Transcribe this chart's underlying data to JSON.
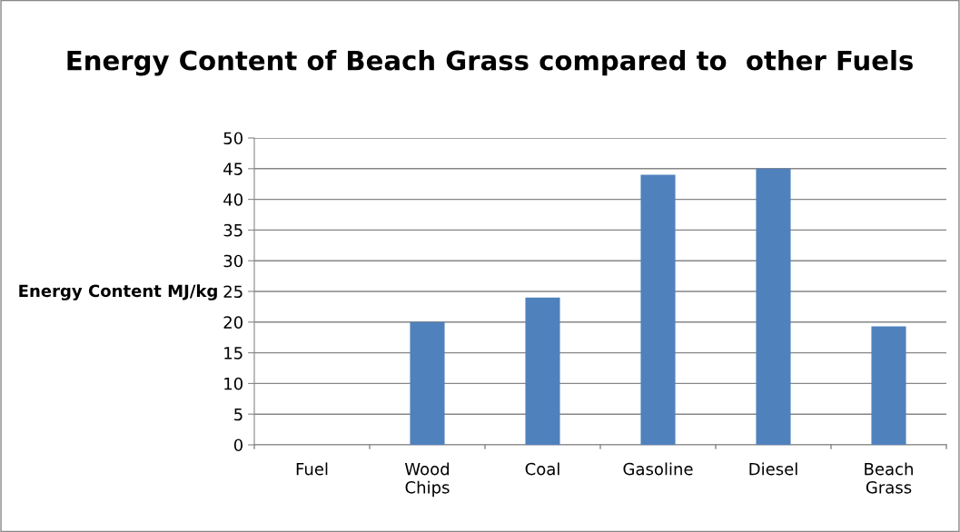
{
  "chart_data": {
    "type": "bar",
    "title": "Energy Content of Beach Grass compared to  other Fuels",
    "ylabel": "Energy Content MJ/kg",
    "categories": [
      "Fuel",
      "Wood Chips",
      "Coal",
      "Gasoline",
      "Diesel",
      "Beach Grass"
    ],
    "values": [
      null,
      20,
      24,
      44,
      45,
      19.3
    ],
    "color": "#4f81bd",
    "ylim": [
      0,
      50
    ],
    "yticks": [
      0,
      5,
      10,
      15,
      20,
      25,
      30,
      35,
      40,
      45,
      50
    ],
    "grid": "y",
    "legend": false
  }
}
